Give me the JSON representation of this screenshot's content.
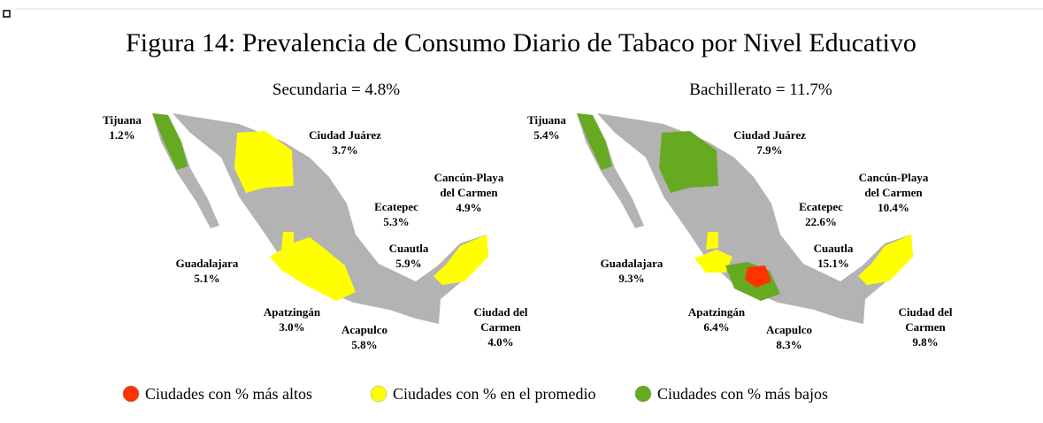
{
  "title": "Figura 14: Prevalencia de Consumo Diario de Tabaco por Nivel Educativo",
  "panels": [
    {
      "subtitle": "Secundaria = 4.8%",
      "cities": [
        {
          "name": [
            "Tijuana"
          ],
          "value": "1.2%"
        },
        {
          "name": [
            "Ciudad Juárez"
          ],
          "value": "3.7%"
        },
        {
          "name": [
            "Ecatepec"
          ],
          "value": "5.3%"
        },
        {
          "name": [
            "Cancún-Playa",
            "del Carmen"
          ],
          "value": "4.9%"
        },
        {
          "name": [
            "Cuautla"
          ],
          "value": "5.9%"
        },
        {
          "name": [
            "Guadalajara"
          ],
          "value": "5.1%"
        },
        {
          "name": [
            "Apatzingán"
          ],
          "value": "3.0%"
        },
        {
          "name": [
            "Acapulco"
          ],
          "value": "5.8%"
        },
        {
          "name": [
            "Ciudad del",
            "Carmen"
          ],
          "value": "4.0%"
        }
      ]
    },
    {
      "subtitle": "Bachillerato = 11.7%",
      "cities": [
        {
          "name": [
            "Tijuana"
          ],
          "value": "5.4%"
        },
        {
          "name": [
            "Ciudad Juárez"
          ],
          "value": "7.9%"
        },
        {
          "name": [
            "Ecatepec"
          ],
          "value": "22.6%"
        },
        {
          "name": [
            "Cancún-Playa",
            "del Carmen"
          ],
          "value": "10.4%"
        },
        {
          "name": [
            "Cuautla"
          ],
          "value": "15.1%"
        },
        {
          "name": [
            "Guadalajara"
          ],
          "value": "9.3%"
        },
        {
          "name": [
            "Apatzingán"
          ],
          "value": "6.4%"
        },
        {
          "name": [
            "Acapulco"
          ],
          "value": "8.3%"
        },
        {
          "name": [
            "Ciudad del",
            "Carmen"
          ],
          "value": "9.8%"
        }
      ]
    }
  ],
  "legend": [
    {
      "label": "Ciudades con % más altos",
      "color": "#ff3300"
    },
    {
      "label": "Ciudades con % en el promedio",
      "color": "#ffff00"
    },
    {
      "label": "Ciudades con % más bajos",
      "color": "#66aa22"
    }
  ]
}
